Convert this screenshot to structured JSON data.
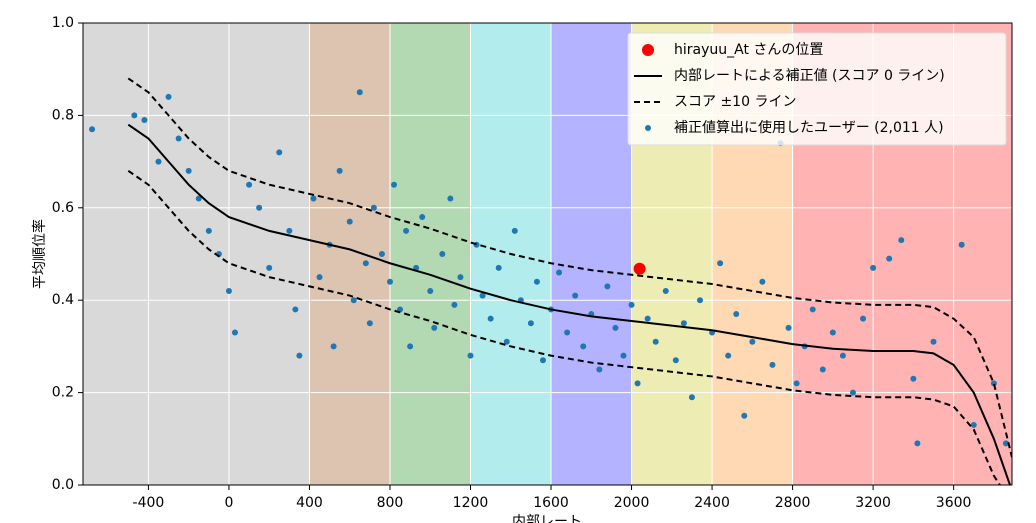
{
  "chart_data": {
    "type": "scatter",
    "xlabel": "内部レート",
    "ylabel": "平均順位率",
    "xlim": [
      -725,
      3890
    ],
    "ylim": [
      0,
      1
    ],
    "xticks": [
      -400,
      0,
      400,
      800,
      1200,
      1600,
      2000,
      2400,
      2800,
      3200,
      3600
    ],
    "yticks": [
      {
        "value": 0,
        "label": "0.0"
      },
      {
        "value": 0.2,
        "label": "0.2"
      },
      {
        "value": 0.4,
        "label": "0.4"
      },
      {
        "value": 0.6,
        "label": "0.6"
      },
      {
        "value": 0.8,
        "label": "0.8"
      },
      {
        "value": 1,
        "label": "1.0"
      }
    ],
    "grid": true,
    "legend": "upper right",
    "bands": [
      {
        "start": -725,
        "end": 400,
        "color": "#d9d9d9"
      },
      {
        "start": 400,
        "end": 800,
        "color": "#dcc4b0"
      },
      {
        "start": 800,
        "end": 1200,
        "color": "#b3d9b3"
      },
      {
        "start": 1200,
        "end": 1600,
        "color": "#b3ecec"
      },
      {
        "start": 1600,
        "end": 2000,
        "color": "#b3b3ff"
      },
      {
        "start": 2000,
        "end": 2400,
        "color": "#ececb3"
      },
      {
        "start": 2400,
        "end": 2800,
        "color": "#ffd9b3"
      },
      {
        "start": 2800,
        "end": 3890,
        "color": "#ffb3b3"
      }
    ],
    "series": [
      {
        "name": "hirayuu_At さんの位置",
        "kind": "point",
        "color": "#ff0000",
        "x": [
          2040
        ],
        "values": [
          0.468
        ]
      },
      {
        "name": "内部レートによる補正値 (スコア 0 ライン)",
        "kind": "line",
        "color": "#000000",
        "x": [
          -500,
          -400,
          -300,
          -200,
          -100,
          0,
          200,
          400,
          600,
          800,
          1000,
          1200,
          1400,
          1600,
          1800,
          2000,
          2200,
          2400,
          2600,
          2800,
          3000,
          3200,
          3400,
          3500,
          3600,
          3700,
          3800,
          3880
        ],
        "values": [
          0.78,
          0.75,
          0.7,
          0.65,
          0.61,
          0.58,
          0.55,
          0.53,
          0.51,
          0.48,
          0.455,
          0.425,
          0.4,
          0.38,
          0.365,
          0.355,
          0.345,
          0.335,
          0.32,
          0.305,
          0.295,
          0.29,
          0.29,
          0.285,
          0.26,
          0.2,
          0.1,
          0
        ]
      },
      {
        "name": "スコア ±10 ライン",
        "kind": "line",
        "dashed": true,
        "color": "#000000",
        "x": [
          -500,
          -400,
          -300,
          -200,
          -100,
          0,
          200,
          400,
          600,
          800,
          1000,
          1200,
          1400,
          1600,
          1800,
          2000,
          2200,
          2400,
          2600,
          2800,
          3000,
          3200,
          3400,
          3500,
          3600,
          3700,
          3800,
          3890
        ],
        "values": [
          0.88,
          0.85,
          0.8,
          0.75,
          0.71,
          0.68,
          0.65,
          0.63,
          0.61,
          0.58,
          0.555,
          0.525,
          0.5,
          0.48,
          0.465,
          0.455,
          0.445,
          0.435,
          0.42,
          0.405,
          0.395,
          0.39,
          0.39,
          0.385,
          0.36,
          0.32,
          0.22,
          0.06
        ]
      },
      {
        "name": "補正値算出に使用したユーザー (2,011 人)",
        "kind": "dots",
        "color": "#1f77b4",
        "x": [
          -680,
          -470,
          -420,
          -350,
          -300,
          -250,
          -200,
          -150,
          -100,
          -50,
          0,
          30,
          100,
          150,
          200,
          250,
          300,
          330,
          350,
          420,
          450,
          500,
          520,
          550,
          600,
          620,
          650,
          680,
          700,
          720,
          760,
          800,
          820,
          850,
          880,
          900,
          930,
          960,
          1000,
          1020,
          1060,
          1100,
          1120,
          1150,
          1200,
          1230,
          1260,
          1300,
          1340,
          1380,
          1420,
          1450,
          1500,
          1530,
          1560,
          1600,
          1640,
          1680,
          1720,
          1760,
          1800,
          1840,
          1880,
          1920,
          1960,
          2000,
          2030,
          2080,
          2120,
          2170,
          2220,
          2260,
          2300,
          2340,
          2400,
          2440,
          2480,
          2520,
          2560,
          2600,
          2650,
          2700,
          2740,
          2780,
          2820,
          2860,
          2900,
          2950,
          3000,
          3050,
          3100,
          3150,
          3200,
          3280,
          3340,
          3400,
          3420,
          3500,
          3640,
          3700,
          3800,
          3860
        ],
        "values": [
          0.77,
          0.8,
          0.79,
          0.7,
          0.84,
          0.75,
          0.68,
          0.62,
          0.55,
          0.5,
          0.42,
          0.33,
          0.65,
          0.6,
          0.47,
          0.72,
          0.55,
          0.38,
          0.28,
          0.62,
          0.45,
          0.52,
          0.3,
          0.68,
          0.57,
          0.4,
          0.85,
          0.48,
          0.35,
          0.6,
          0.5,
          0.44,
          0.65,
          0.38,
          0.55,
          0.3,
          0.47,
          0.58,
          0.42,
          0.34,
          0.5,
          0.62,
          0.39,
          0.45,
          0.28,
          0.52,
          0.41,
          0.36,
          0.47,
          0.31,
          0.55,
          0.4,
          0.35,
          0.44,
          0.27,
          0.38,
          0.46,
          0.33,
          0.41,
          0.3,
          0.37,
          0.25,
          0.43,
          0.34,
          0.28,
          0.39,
          0.22,
          0.36,
          0.31,
          0.42,
          0.27,
          0.35,
          0.19,
          0.4,
          0.33,
          0.48,
          0.28,
          0.37,
          0.15,
          0.31,
          0.44,
          0.26,
          0.74,
          0.34,
          0.22,
          0.3,
          0.38,
          0.25,
          0.33,
          0.28,
          0.2,
          0.36,
          0.47,
          0.49,
          0.53,
          0.23,
          0.09,
          0.31,
          0.52,
          0.13,
          0.22,
          0.09
        ]
      },
      {
        "kind": "line",
        "dashed": true,
        "color": "#000000",
        "x": [
          -500,
          -400,
          -300,
          -200,
          -100,
          0,
          200,
          400,
          600,
          800,
          1000,
          1200,
          1400,
          1600,
          1800,
          2000,
          2200,
          2400,
          2600,
          2800,
          3000,
          3200,
          3400,
          3500,
          3600,
          3700,
          3800,
          3830
        ],
        "values": [
          0.68,
          0.65,
          0.6,
          0.55,
          0.51,
          0.48,
          0.45,
          0.43,
          0.41,
          0.38,
          0.355,
          0.325,
          0.3,
          0.28,
          0.265,
          0.255,
          0.245,
          0.235,
          0.22,
          0.205,
          0.195,
          0.19,
          0.19,
          0.185,
          0.17,
          0.12,
          0.02,
          0
        ]
      }
    ]
  }
}
